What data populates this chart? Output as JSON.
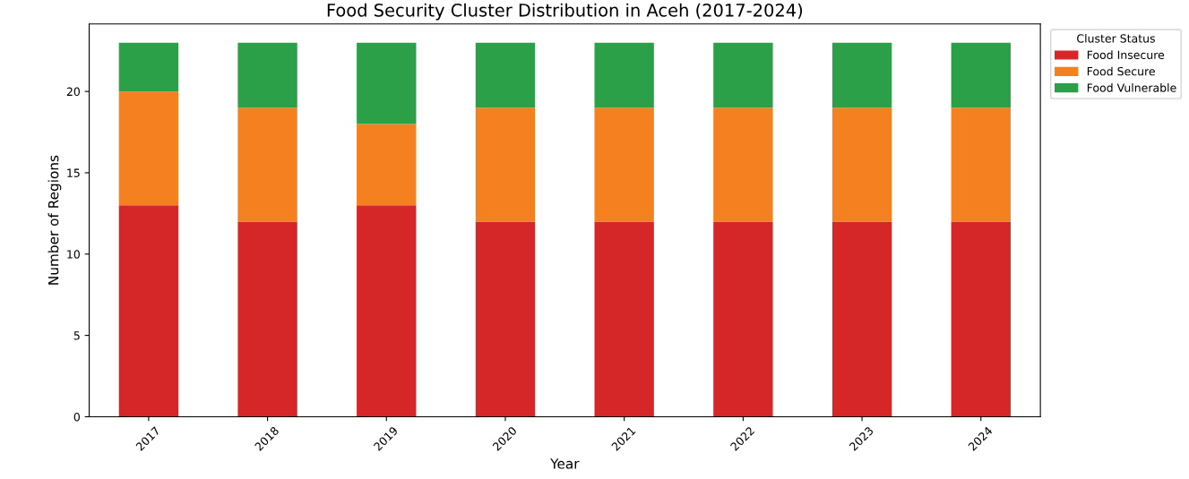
{
  "chart_data": {
    "type": "bar",
    "title": "Food Security Cluster Distribution in Aceh (2017-2024)",
    "xlabel": "Year",
    "ylabel": "Number of Regions",
    "legend_title": "Cluster Status",
    "categories": [
      "2017",
      "2018",
      "2019",
      "2020",
      "2021",
      "2022",
      "2023",
      "2024"
    ],
    "series": [
      {
        "name": "Food Insecure",
        "color": "#d62728",
        "values": [
          13,
          12,
          13,
          12,
          12,
          12,
          12,
          12
        ]
      },
      {
        "name": "Food Secure",
        "color": "#f58020",
        "values": [
          7,
          7,
          5,
          7,
          7,
          7,
          7,
          7
        ]
      },
      {
        "name": "Food Vulnerable",
        "color": "#2ca048",
        "values": [
          3,
          4,
          5,
          4,
          4,
          4,
          4,
          4
        ]
      }
    ],
    "stacked": true,
    "ylim": [
      0,
      24.15
    ],
    "yticks": [
      0,
      5,
      10,
      15,
      20
    ],
    "grid": false,
    "legend": "top right"
  }
}
